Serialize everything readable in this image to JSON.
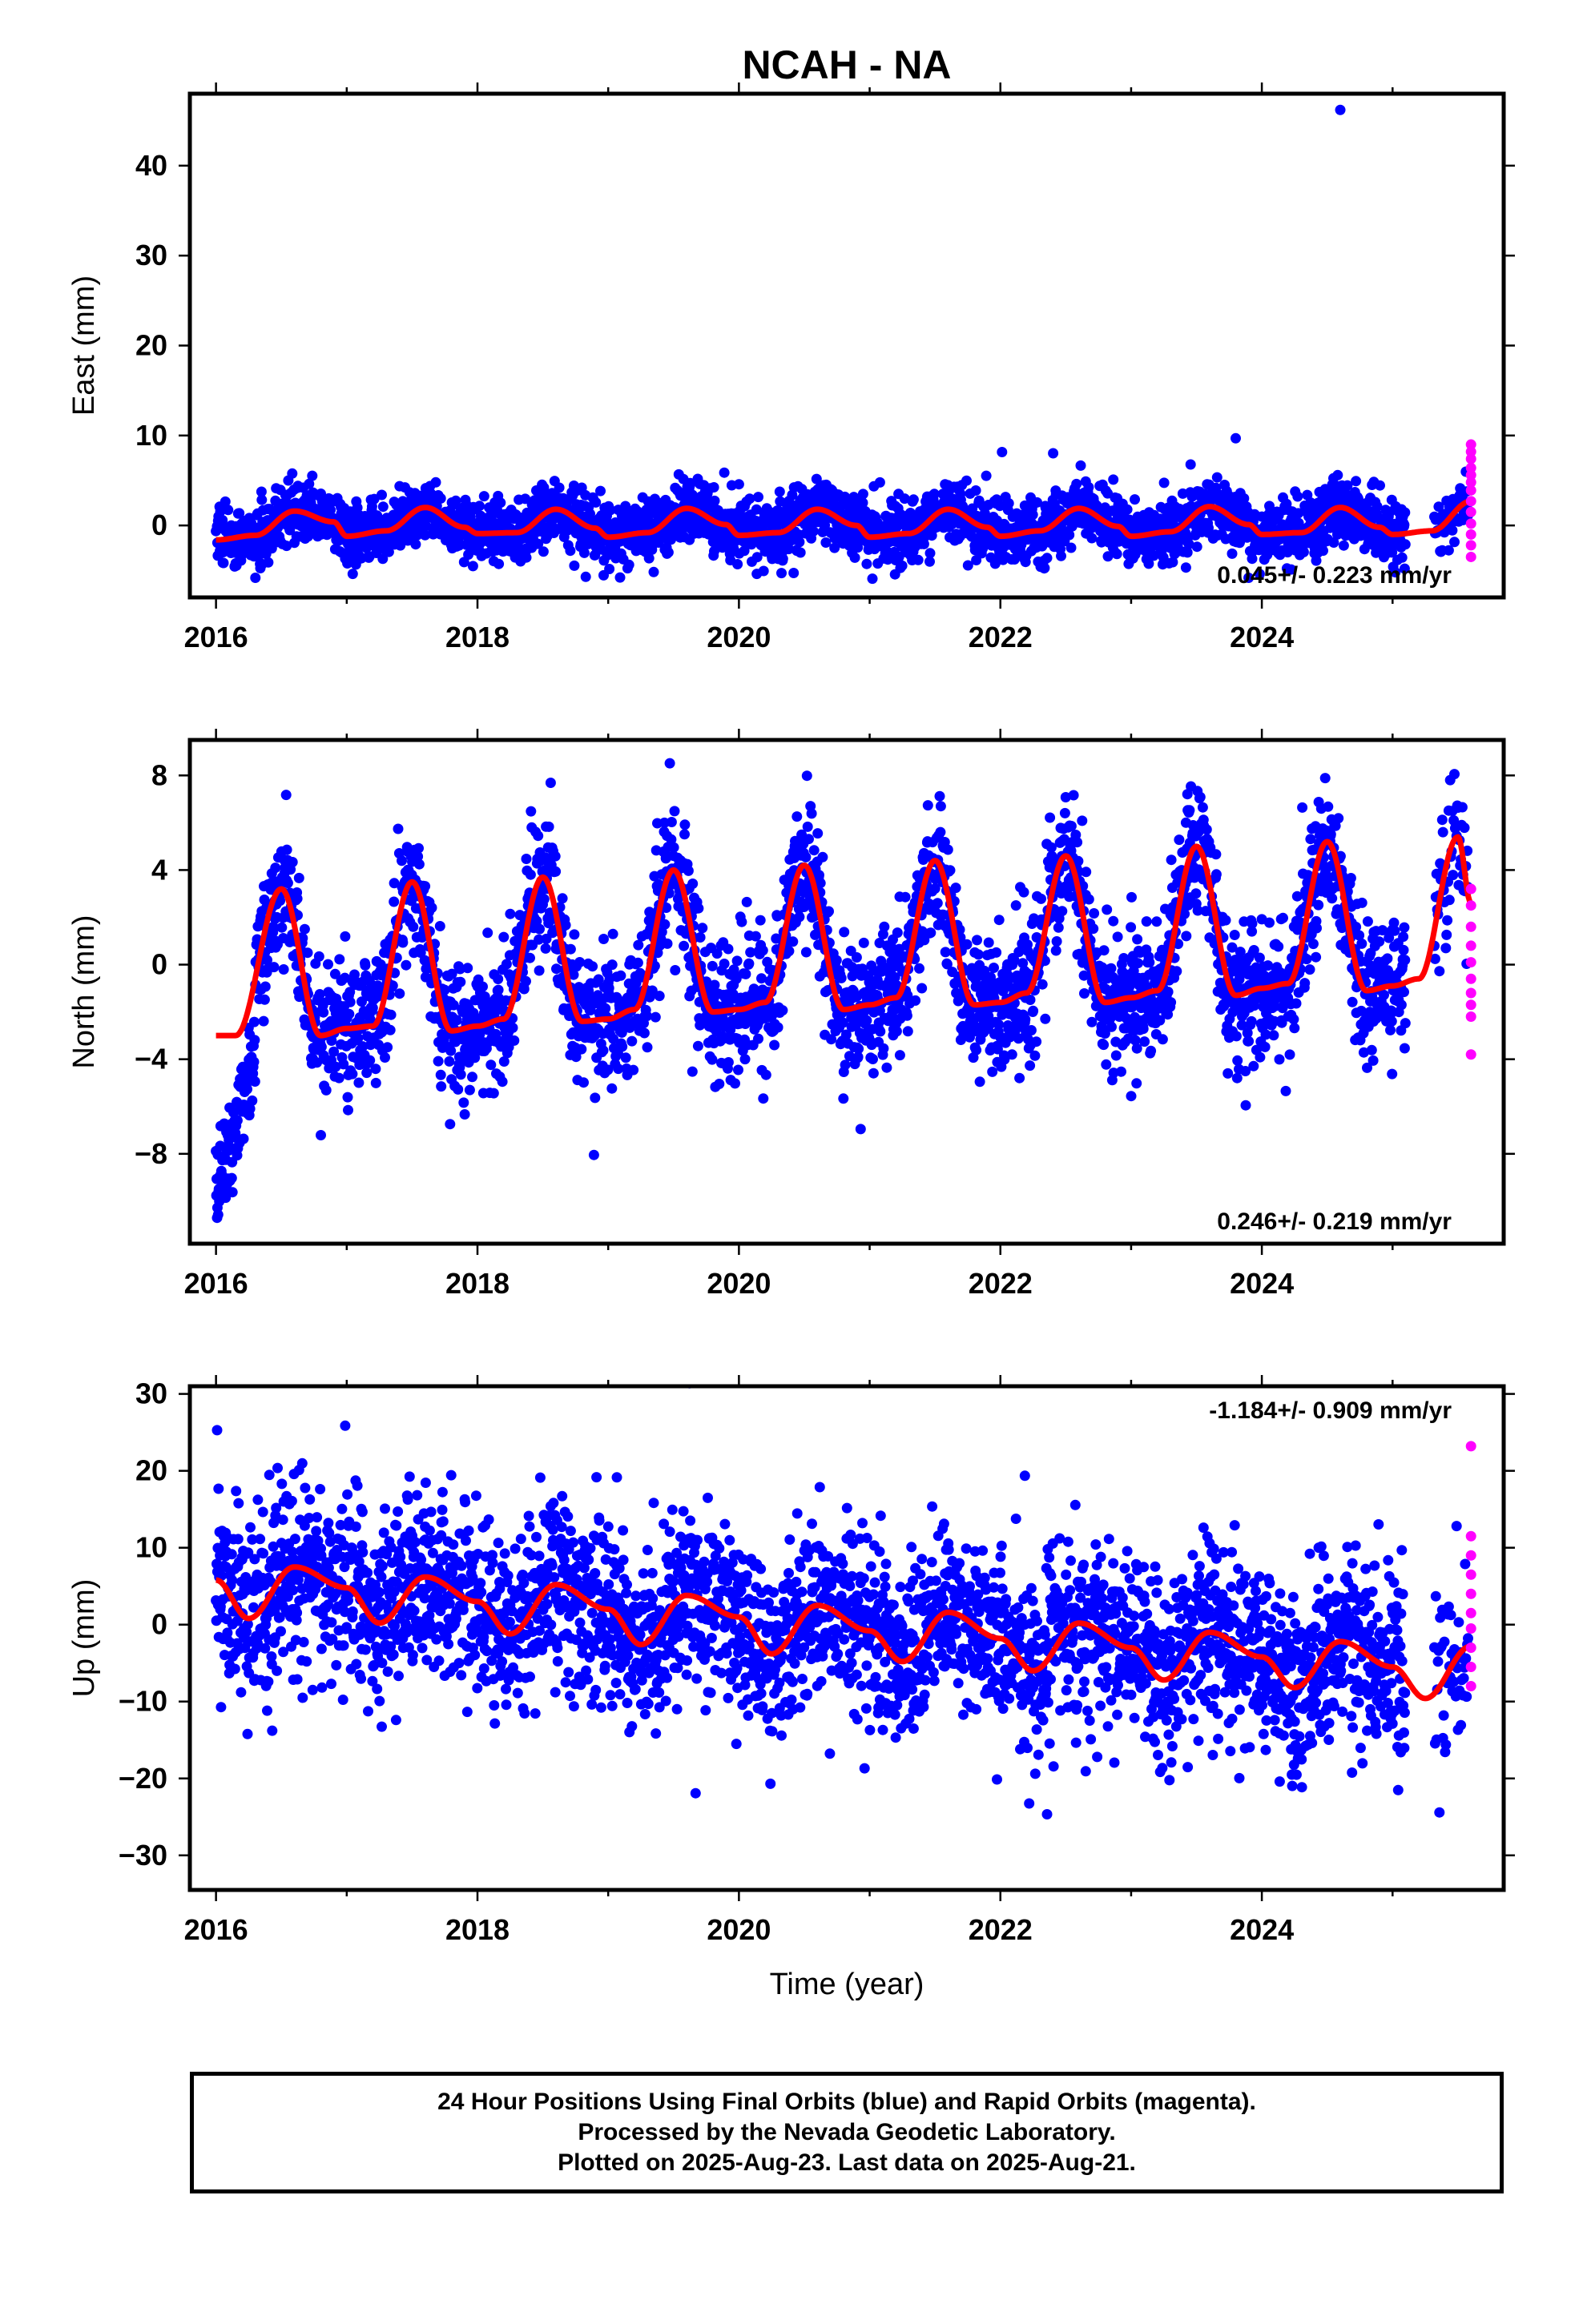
{
  "chart_data": {
    "type": "scatter",
    "title": "NCAH - NA",
    "xlabel": "Time (year)",
    "xlim": [
      2015.8,
      2025.85
    ],
    "xticks": [
      2016,
      2018,
      2020,
      2022,
      2024
    ],
    "colors": {
      "final": "#0000ff",
      "rapid": "#ff00ff",
      "model": "#ff0000"
    },
    "panels": [
      {
        "ylabel": "East (mm)",
        "ylim": [
          -8,
          48
        ],
        "yticks": [
          0,
          10,
          20,
          30,
          40
        ],
        "rate": "0.045+/- 0.223 mm/yr",
        "rate_position": "bottom-right",
        "model": {
          "trend": [
            2016,
            -1.5,
            2025.1,
            -1.0
          ],
          "annual_amp": 1.8,
          "peak_phase": 0.62,
          "scatter_sd": 1.6,
          "last_final": 2025.1
        },
        "model_curve": [
          [
            2016.0,
            -1.6
          ],
          [
            2016.3,
            -1.1
          ],
          [
            2016.6,
            1.6
          ],
          [
            2016.9,
            0.4
          ],
          [
            2017.0,
            -1.2
          ],
          [
            2017.3,
            -0.6
          ],
          [
            2017.6,
            2.0
          ],
          [
            2017.9,
            -0.2
          ],
          [
            2018.0,
            -0.9
          ],
          [
            2018.3,
            -0.8
          ],
          [
            2018.6,
            1.8
          ],
          [
            2018.9,
            -0.3
          ],
          [
            2019.0,
            -1.3
          ],
          [
            2019.3,
            -0.8
          ],
          [
            2019.6,
            1.9
          ],
          [
            2019.9,
            0.1
          ],
          [
            2020.0,
            -1.1
          ],
          [
            2020.3,
            -0.8
          ],
          [
            2020.6,
            1.8
          ],
          [
            2020.9,
            0.0
          ],
          [
            2021.0,
            -1.3
          ],
          [
            2021.3,
            -0.9
          ],
          [
            2021.6,
            1.8
          ],
          [
            2021.9,
            -0.2
          ],
          [
            2022.0,
            -1.2
          ],
          [
            2022.3,
            -0.6
          ],
          [
            2022.6,
            1.9
          ],
          [
            2022.9,
            -0.1
          ],
          [
            2023.0,
            -1.2
          ],
          [
            2023.3,
            -0.7
          ],
          [
            2023.6,
            2.1
          ],
          [
            2023.9,
            0.1
          ],
          [
            2024.0,
            -1.0
          ],
          [
            2024.3,
            -0.8
          ],
          [
            2024.6,
            2.0
          ],
          [
            2024.9,
            -0.2
          ],
          [
            2025.0,
            -1.0
          ],
          [
            2025.3,
            -0.6
          ],
          [
            2025.6,
            2.7
          ]
        ],
        "outliers": [
          [
            2024.6,
            46.2
          ]
        ],
        "rapid": {
          "x": 2025.6,
          "values": [
            9.0,
            8.2,
            7.4,
            6.4,
            5.6,
            4.8,
            3.9,
            2.7,
            1.5,
            0.2,
            -1.0,
            -2.2,
            -3.5
          ]
        }
      },
      {
        "ylabel": "North (mm)",
        "ylim": [
          -11.8,
          9.5
        ],
        "yticks": [
          -8,
          -4,
          0,
          4,
          8
        ],
        "rate": "0.246+/- 0.219 mm/yr",
        "rate_position": "bottom-right",
        "model_curve": [
          [
            2016.0,
            -3.0
          ],
          [
            2016.15,
            -3.0
          ],
          [
            2016.5,
            3.2
          ],
          [
            2016.8,
            -3.0
          ],
          [
            2017.0,
            -2.7
          ],
          [
            2017.2,
            -2.6
          ],
          [
            2017.5,
            3.5
          ],
          [
            2017.8,
            -2.8
          ],
          [
            2018.0,
            -2.6
          ],
          [
            2018.2,
            -2.3
          ],
          [
            2018.5,
            3.7
          ],
          [
            2018.8,
            -2.4
          ],
          [
            2019.0,
            -2.3
          ],
          [
            2019.2,
            -1.9
          ],
          [
            2019.5,
            4.0
          ],
          [
            2019.8,
            -2.0
          ],
          [
            2020.0,
            -1.9
          ],
          [
            2020.2,
            -1.6
          ],
          [
            2020.5,
            4.2
          ],
          [
            2020.8,
            -1.9
          ],
          [
            2021.0,
            -1.7
          ],
          [
            2021.2,
            -1.4
          ],
          [
            2021.5,
            4.4
          ],
          [
            2021.8,
            -1.7
          ],
          [
            2022.0,
            -1.6
          ],
          [
            2022.2,
            -1.2
          ],
          [
            2022.5,
            4.6
          ],
          [
            2022.8,
            -1.6
          ],
          [
            2023.0,
            -1.4
          ],
          [
            2023.2,
            -1.1
          ],
          [
            2023.5,
            5.0
          ],
          [
            2023.8,
            -1.3
          ],
          [
            2024.0,
            -1.0
          ],
          [
            2024.2,
            -0.8
          ],
          [
            2024.5,
            5.2
          ],
          [
            2024.8,
            -1.1
          ],
          [
            2025.0,
            -0.9
          ],
          [
            2025.2,
            -0.6
          ],
          [
            2025.5,
            5.4
          ],
          [
            2025.6,
            2.6
          ]
        ],
        "early_transient": {
          "x_end": 2016.3,
          "y_start": -9.5,
          "y_end": -4.0
        },
        "rapid": {
          "x": 2025.6,
          "values": [
            3.2,
            2.5,
            1.6,
            0.8,
            0.1,
            -0.6,
            -1.2,
            -1.7,
            -2.2,
            -3.8
          ]
        }
      },
      {
        "ylabel": "Up (mm)",
        "ylim": [
          -34.5,
          31
        ],
        "yticks": [
          -30,
          -20,
          -10,
          0,
          10,
          20,
          30
        ],
        "xlabel": "Time (year)",
        "rate": "-1.184+/- 0.909 mm/yr",
        "rate_position": "top-right",
        "model_curve": [
          [
            2016.0,
            5.8
          ],
          [
            2016.25,
            0.8
          ],
          [
            2016.6,
            7.5
          ],
          [
            2017.0,
            4.8
          ],
          [
            2017.25,
            0.2
          ],
          [
            2017.6,
            6.2
          ],
          [
            2018.0,
            3.0
          ],
          [
            2018.25,
            -1.2
          ],
          [
            2018.6,
            5.2
          ],
          [
            2019.0,
            2.0
          ],
          [
            2019.25,
            -2.6
          ],
          [
            2019.6,
            3.8
          ],
          [
            2020.0,
            1.0
          ],
          [
            2020.25,
            -3.8
          ],
          [
            2020.6,
            2.5
          ],
          [
            2021.0,
            -0.8
          ],
          [
            2021.25,
            -4.8
          ],
          [
            2021.6,
            1.6
          ],
          [
            2022.0,
            -1.8
          ],
          [
            2022.25,
            -6.0
          ],
          [
            2022.6,
            0.2
          ],
          [
            2023.0,
            -3.0
          ],
          [
            2023.25,
            -7.2
          ],
          [
            2023.6,
            -1.0
          ],
          [
            2024.0,
            -4.2
          ],
          [
            2024.25,
            -8.2
          ],
          [
            2024.6,
            -2.2
          ],
          [
            2025.0,
            -5.5
          ],
          [
            2025.25,
            -9.6
          ],
          [
            2025.6,
            -2.8
          ]
        ],
        "rapid": {
          "x": 2025.6,
          "values": [
            23.2,
            11.5,
            9.0,
            6.5,
            4.0,
            1.5,
            -0.5,
            -3.0,
            -5.5,
            -8.0
          ]
        }
      }
    ]
  },
  "footer": {
    "line1": "24 Hour Positions Using Final Orbits (blue) and Rapid Orbits (magenta).",
    "line2": "Processed by the Nevada Geodetic Laboratory.",
    "line3": "Plotted on 2025-Aug-23. Last data on 2025-Aug-21."
  }
}
